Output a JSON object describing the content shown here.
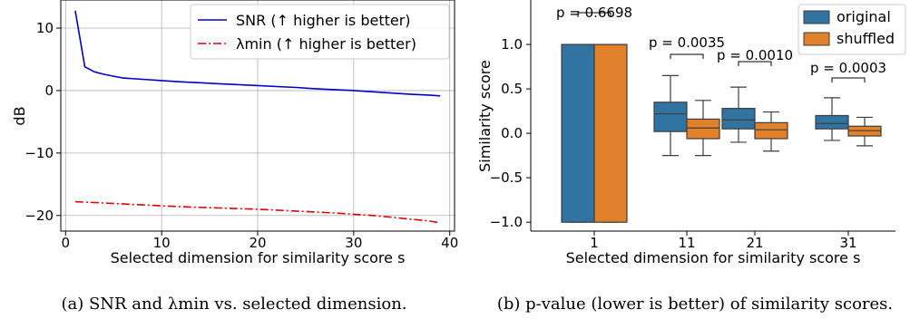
{
  "chart_data": [
    {
      "type": "line",
      "xlabel": "Selected dimension for similarity score s",
      "ylabel": "dB",
      "xlim": [
        -0.5,
        40.5
      ],
      "ylim": [
        -22.5,
        14.5
      ],
      "xticks": [
        0,
        10,
        20,
        30,
        40
      ],
      "yticks": [
        10,
        0,
        -10,
        -20
      ],
      "grid": true,
      "legend_position": "top-right",
      "series": [
        {
          "name": "SNR (↑ higher is better)",
          "color": "#0000cc",
          "style": "solid",
          "x": [
            1,
            2,
            3,
            4,
            5,
            6,
            8,
            10,
            12,
            14,
            16,
            18,
            20,
            22,
            24,
            26,
            28,
            30,
            32,
            34,
            36,
            38,
            39
          ],
          "y": [
            12.8,
            3.8,
            3.0,
            2.6,
            2.3,
            2.0,
            1.8,
            1.6,
            1.4,
            1.25,
            1.1,
            0.95,
            0.8,
            0.65,
            0.5,
            0.3,
            0.15,
            0.0,
            -0.2,
            -0.4,
            -0.6,
            -0.75,
            -0.85
          ]
        },
        {
          "name": "λmin (↑ higher is better)",
          "color": "#e00000",
          "style": "dashdot",
          "x": [
            1,
            4,
            8,
            12,
            16,
            20,
            24,
            28,
            30,
            32,
            34,
            36,
            38,
            39
          ],
          "y": [
            -17.8,
            -18.0,
            -18.3,
            -18.6,
            -18.8,
            -19.0,
            -19.3,
            -19.6,
            -19.8,
            -20.0,
            -20.3,
            -20.6,
            -20.9,
            -21.2
          ]
        }
      ],
      "caption": "(a) SNR and λmin vs. selected dimension."
    },
    {
      "type": "box",
      "xlabel": "Selected dimension for similarity score s",
      "ylabel": "Similarity score",
      "ylim": [
        -1.1,
        1.5
      ],
      "yticks": [
        1.0,
        0.5,
        0.0,
        -0.5,
        -1.0
      ],
      "categories": [
        "1",
        "11",
        "21",
        "31"
      ],
      "legend_position": "top-right",
      "series": [
        {
          "name": "original",
          "color": "#3274a1",
          "boxes": [
            {
              "whislo": -1.0,
              "q1": -1.0,
              "med": 1.0,
              "q3": 1.0,
              "whishi": 1.0
            },
            {
              "whislo": -0.25,
              "q1": 0.02,
              "med": 0.22,
              "q3": 0.35,
              "whishi": 0.65
            },
            {
              "whislo": -0.1,
              "q1": 0.05,
              "med": 0.15,
              "q3": 0.28,
              "whishi": 0.52
            },
            {
              "whislo": -0.08,
              "q1": 0.05,
              "med": 0.11,
              "q3": 0.2,
              "whishi": 0.4
            }
          ]
        },
        {
          "name": "shuffled",
          "color": "#e1812c",
          "boxes": [
            {
              "whislo": -1.0,
              "q1": -1.0,
              "med": 1.0,
              "q3": 1.0,
              "whishi": 1.0
            },
            {
              "whislo": -0.25,
              "q1": -0.06,
              "med": 0.06,
              "q3": 0.16,
              "whishi": 0.37
            },
            {
              "whislo": -0.2,
              "q1": -0.06,
              "med": 0.04,
              "q3": 0.12,
              "whishi": 0.24
            },
            {
              "whislo": -0.14,
              "q1": -0.03,
              "med": 0.03,
              "q3": 0.08,
              "whishi": 0.18
            }
          ]
        }
      ],
      "annotations": [
        "p = 0.6698",
        "p = 0.0035",
        "p = 0.0010",
        "p = 0.0003"
      ],
      "caption": "(b) p-value (lower is better) of similarity scores."
    }
  ]
}
